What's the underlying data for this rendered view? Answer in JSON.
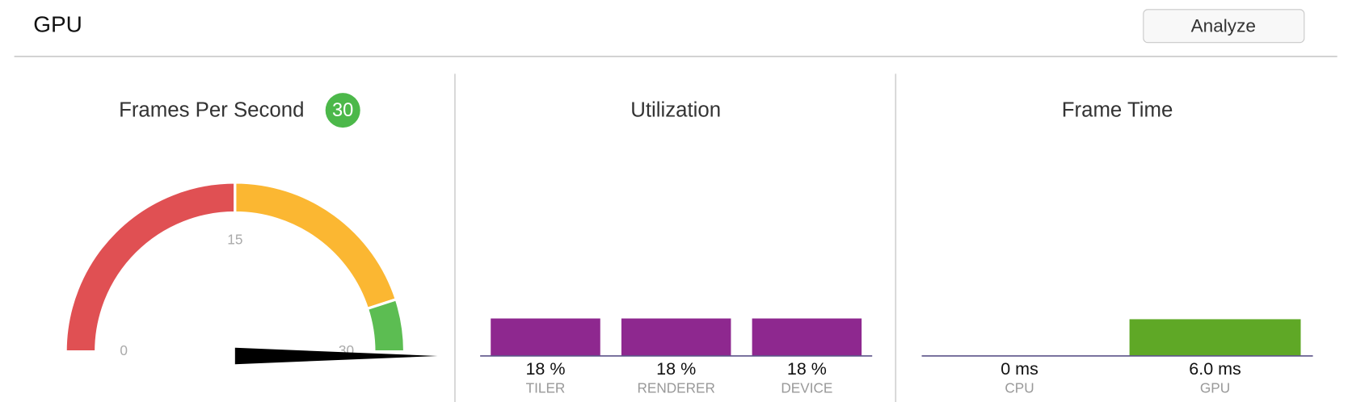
{
  "header": {
    "title": "GPU",
    "button": "Analyze"
  },
  "chart_data": [
    {
      "type": "gauge",
      "title": "Frames Per Second",
      "value": 30,
      "ylim": [
        0,
        30
      ],
      "yticks": [
        0,
        15,
        30
      ],
      "bands": [
        {
          "from": 0,
          "to": 15,
          "color": "#e05053"
        },
        {
          "from": 15,
          "to": 27,
          "color": "#fbb732"
        },
        {
          "from": 27,
          "to": 30,
          "color": "#5cbd52"
        }
      ],
      "badge_color": "#4cb84a",
      "needle_color": "#000000"
    },
    {
      "type": "bar",
      "title": "Utilization",
      "categories": [
        "TILER",
        "RENDERER",
        "DEVICE"
      ],
      "values": [
        18,
        18,
        18
      ],
      "value_labels": [
        "18 %",
        "18 %",
        "18 %"
      ],
      "color": "#8e288f",
      "ylim": [
        0,
        100
      ]
    },
    {
      "type": "bar",
      "title": "Frame Time",
      "categories": [
        "CPU",
        "GPU"
      ],
      "values": [
        0,
        6.0
      ],
      "value_labels": [
        "0 ms",
        "6.0 ms"
      ],
      "color": "#5fa826",
      "ylim": [
        0,
        34
      ]
    }
  ]
}
